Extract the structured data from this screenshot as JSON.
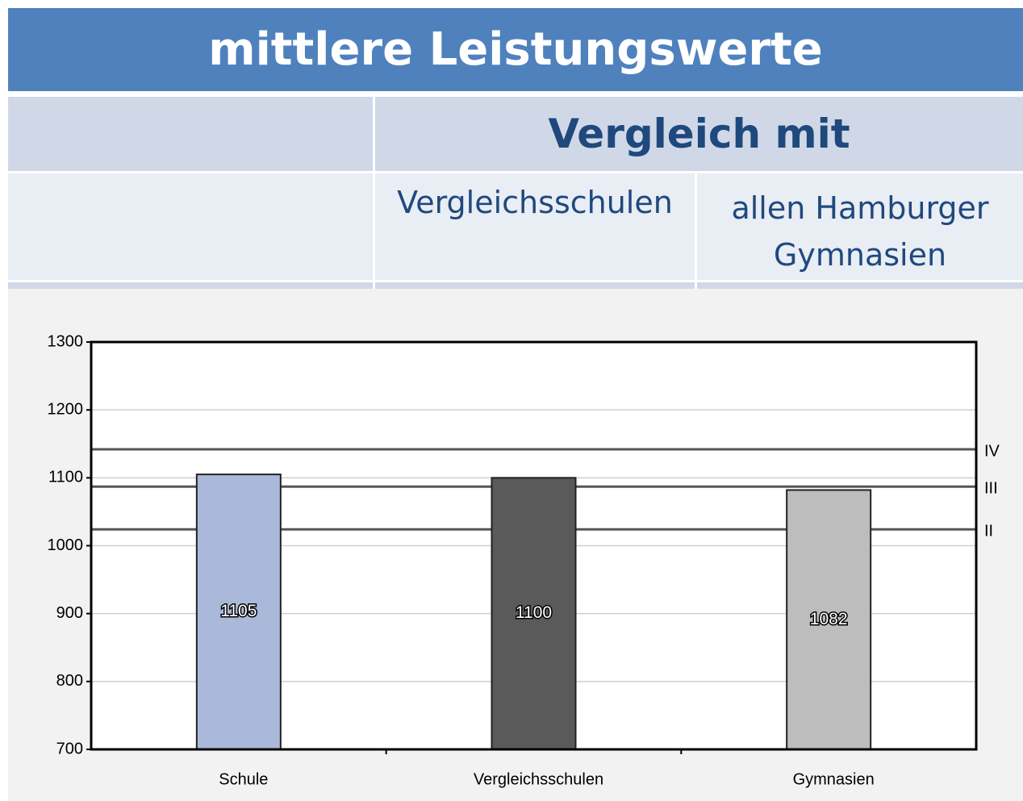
{
  "header": {
    "title": "mittlere Leistungswerte"
  },
  "table": {
    "group_header": "Vergleich mit",
    "columns": [
      "Vergleichsschulen",
      "allen Hamburger Gymnasien"
    ]
  },
  "chart_data": {
    "type": "bar",
    "categories": [
      "Schule",
      "Vergleichsschulen",
      "Gymnasien"
    ],
    "values": [
      1105,
      1100,
      1082
    ],
    "colors": [
      "#aab9d9",
      "#5a5a5a",
      "#bdbdbd"
    ],
    "ylim": [
      700,
      1300
    ],
    "yticks": [
      700,
      800,
      900,
      1000,
      1100,
      1200,
      1300
    ],
    "grid": true,
    "reference_lines": [
      {
        "label": "IV",
        "value": 1142
      },
      {
        "label": "III",
        "value": 1087
      },
      {
        "label": "II",
        "value": 1024
      }
    ]
  }
}
